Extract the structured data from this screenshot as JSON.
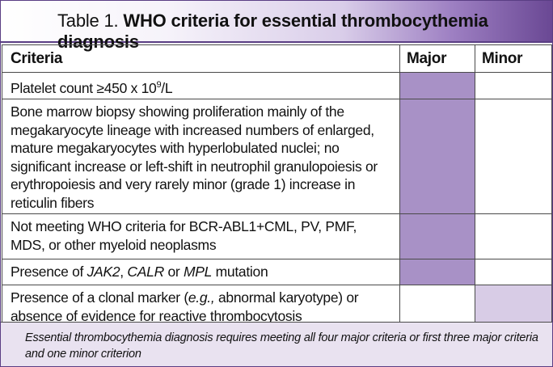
{
  "title": {
    "prefix": "Table 1. ",
    "bold": "WHO criteria for essential thrombocythemia diagnosis"
  },
  "headers": {
    "criteria": "Criteria",
    "major": "Major",
    "minor": "Minor"
  },
  "rows": [
    {
      "text_parts": [
        "Platelet count ≥450 x 10",
        "9",
        "/L"
      ],
      "major": true,
      "minor": false
    },
    {
      "text": "Bone marrow biopsy showing proliferation mainly of the megakaryocyte lineage with increased numbers of enlarged, mature megakaryocytes with hyperlobulated nuclei; no significant increase or left-shift in neutrophil granulopoiesis or erythropoiesis and very rarely minor (grade 1) increase in reticulin fibers",
      "major": true,
      "minor": false
    },
    {
      "text": "Not meeting WHO criteria for BCR-ABL1+CML, PV, PMF, MDS, or other myeloid neoplasms",
      "major": true,
      "minor": false
    },
    {
      "text_parts": [
        "Presence of ",
        "JAK2",
        ", ",
        "CALR",
        " or ",
        "MPL",
        " mutation"
      ],
      "major": true,
      "minor": false
    },
    {
      "text_parts": [
        "Presence of a clonal marker (",
        "e.g.,",
        " abnormal karyotype) or absence of evidence for reactive thrombocytosis"
      ],
      "major": false,
      "minor": true
    }
  ],
  "footnote": "Essential thrombocythemia diagnosis requires meeting all four major criteria or first three major criteria and one minor criterion",
  "colors": {
    "major_fill": "#a891c6",
    "minor_fill": "#d8cce6",
    "footnote_bg": "#e9e2f0",
    "title_gradient_end": "#6a4894"
  }
}
